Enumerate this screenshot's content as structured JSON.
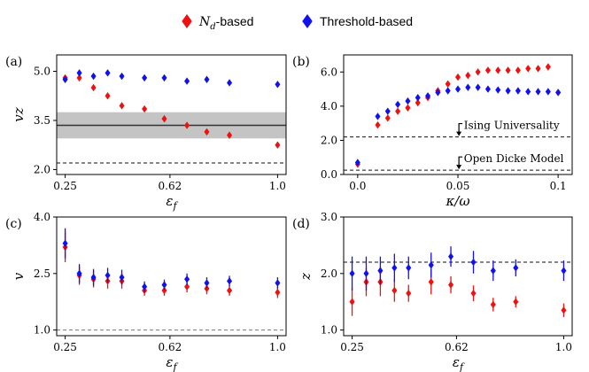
{
  "legend": {
    "nd_label": "N_d-based",
    "thr_label": "Threshold-based",
    "nd_color": "#ee1111",
    "thr_color": "#1111ee"
  },
  "chart_data": [
    {
      "id": "a",
      "panel_label": "(a)",
      "type": "scatter",
      "ylabel": "vz",
      "xlabel": "ε_f",
      "xlim": [
        0.22,
        1.03
      ],
      "ylim": [
        1.85,
        5.5
      ],
      "xticks": [
        0.25,
        0.62,
        1.0
      ],
      "xtick_labels": [
        "0.25",
        "0.62",
        "1.0"
      ],
      "yticks": [
        2.0,
        3.5,
        5.0
      ],
      "ytick_labels": [
        "2.0",
        "3.5",
        "5.0"
      ],
      "band": {
        "low": 2.95,
        "high": 3.75,
        "center": 3.35
      },
      "dashed_line": 2.2,
      "series": [
        {
          "name": "N_d-based",
          "x": [
            0.25,
            0.3,
            0.35,
            0.4,
            0.45,
            0.53,
            0.6,
            0.68,
            0.75,
            0.83,
            1.0
          ],
          "y": [
            4.8,
            4.8,
            4.5,
            4.25,
            3.95,
            3.85,
            3.55,
            3.35,
            3.15,
            3.05,
            2.75
          ]
        },
        {
          "name": "Threshold-based",
          "x": [
            0.25,
            0.3,
            0.35,
            0.4,
            0.45,
            0.53,
            0.6,
            0.68,
            0.75,
            0.83,
            1.0
          ],
          "y": [
            4.75,
            4.95,
            4.85,
            4.95,
            4.85,
            4.8,
            4.8,
            4.7,
            4.75,
            4.65,
            4.6
          ]
        }
      ]
    },
    {
      "id": "b",
      "panel_label": "(b)",
      "type": "scatter",
      "ylabel": "",
      "xlabel": "κ/ω",
      "xlim": [
        -0.007,
        0.107
      ],
      "ylim": [
        0.0,
        7.0
      ],
      "xticks": [
        0.0,
        0.05,
        0.1
      ],
      "xtick_labels": [
        "0.0",
        "0.05",
        "0.1"
      ],
      "yticks": [
        0.0,
        2.0,
        4.0,
        6.0
      ],
      "ytick_labels": [
        "0.0",
        "2.0",
        "4.0",
        "6.0"
      ],
      "dashed_lines": [
        2.2,
        0.25
      ],
      "annotations": [
        "Ising Universality",
        "Open Dicke Model"
      ],
      "series": [
        {
          "name": "N_d-based",
          "x": [
            0.0,
            0.01,
            0.015,
            0.02,
            0.025,
            0.03,
            0.035,
            0.04,
            0.045,
            0.05,
            0.055,
            0.06,
            0.065,
            0.07,
            0.075,
            0.08,
            0.085,
            0.09,
            0.095,
            0.1
          ],
          "y": [
            0.6,
            2.9,
            3.3,
            3.7,
            3.9,
            4.2,
            4.5,
            4.9,
            5.3,
            5.7,
            5.8,
            6.0,
            6.1,
            6.1,
            6.1,
            6.1,
            6.2,
            6.2,
            6.3,
            4.8
          ]
        },
        {
          "name": "Threshold-based",
          "x": [
            0.0,
            0.01,
            0.015,
            0.02,
            0.025,
            0.03,
            0.035,
            0.04,
            0.045,
            0.05,
            0.055,
            0.06,
            0.065,
            0.07,
            0.075,
            0.08,
            0.085,
            0.09,
            0.095,
            0.1
          ],
          "y": [
            0.7,
            3.4,
            3.7,
            4.1,
            4.3,
            4.5,
            4.6,
            4.8,
            4.9,
            5.0,
            5.1,
            5.1,
            5.0,
            4.95,
            4.9,
            4.9,
            4.85,
            4.85,
            4.85,
            4.8
          ]
        }
      ]
    },
    {
      "id": "c",
      "panel_label": "(c)",
      "type": "scatter",
      "ylabel": "v",
      "xlabel": "ε_f",
      "xlim": [
        0.22,
        1.03
      ],
      "ylim": [
        0.85,
        4.0
      ],
      "xticks": [
        0.25,
        0.62,
        1.0
      ],
      "xtick_labels": [
        "0.25",
        "0.62",
        "1.0"
      ],
      "yticks": [
        1.0,
        2.5,
        4.0
      ],
      "ytick_labels": [
        "1.0",
        "2.5",
        "4.0"
      ],
      "dashed_line": 1.0,
      "series": [
        {
          "name": "N_d-based",
          "x": [
            0.25,
            0.3,
            0.35,
            0.4,
            0.45,
            0.53,
            0.6,
            0.68,
            0.75,
            0.83,
            1.0
          ],
          "y": [
            3.2,
            2.45,
            2.35,
            2.3,
            2.3,
            2.05,
            2.05,
            2.15,
            2.1,
            2.05,
            2.0
          ],
          "err": [
            0.4,
            0.25,
            0.22,
            0.2,
            0.2,
            0.14,
            0.14,
            0.15,
            0.15,
            0.14,
            0.15
          ]
        },
        {
          "name": "Threshold-based",
          "x": [
            0.25,
            0.3,
            0.35,
            0.4,
            0.45,
            0.53,
            0.6,
            0.68,
            0.75,
            0.83,
            1.0
          ],
          "y": [
            3.3,
            2.5,
            2.4,
            2.45,
            2.4,
            2.15,
            2.2,
            2.35,
            2.25,
            2.3,
            2.25
          ],
          "err": [
            0.4,
            0.25,
            0.22,
            0.2,
            0.2,
            0.14,
            0.14,
            0.15,
            0.15,
            0.14,
            0.15
          ]
        }
      ]
    },
    {
      "id": "d",
      "panel_label": "(d)",
      "type": "scatter",
      "ylabel": "z",
      "xlabel": "ε_f",
      "xlim": [
        0.22,
        1.03
      ],
      "ylim": [
        0.9,
        3.0
      ],
      "xticks": [
        0.25,
        0.62,
        1.0
      ],
      "xtick_labels": [
        "0.25",
        "0.62",
        "1.0"
      ],
      "yticks": [
        1.0,
        2.0,
        3.0
      ],
      "ytick_labels": [
        "1.0",
        "2.0",
        "3.0"
      ],
      "dashed_line": 2.2,
      "series": [
        {
          "name": "N_d-based",
          "x": [
            0.25,
            0.3,
            0.35,
            0.4,
            0.45,
            0.53,
            0.6,
            0.68,
            0.75,
            0.83,
            1.0
          ],
          "y": [
            1.5,
            1.85,
            1.85,
            1.7,
            1.65,
            1.85,
            1.8,
            1.65,
            1.45,
            1.5,
            1.35
          ],
          "err": [
            0.25,
            0.25,
            0.25,
            0.2,
            0.15,
            0.22,
            0.15,
            0.14,
            0.12,
            0.1,
            0.12
          ]
        },
        {
          "name": "Threshold-based",
          "x": [
            0.25,
            0.3,
            0.35,
            0.4,
            0.45,
            0.53,
            0.6,
            0.68,
            0.75,
            0.83,
            1.0
          ],
          "y": [
            2.0,
            2.0,
            2.05,
            2.1,
            2.1,
            2.15,
            2.3,
            2.2,
            2.05,
            2.1,
            2.05
          ],
          "err": [
            0.3,
            0.3,
            0.25,
            0.25,
            0.2,
            0.22,
            0.18,
            0.2,
            0.18,
            0.15,
            0.18
          ]
        }
      ]
    }
  ]
}
